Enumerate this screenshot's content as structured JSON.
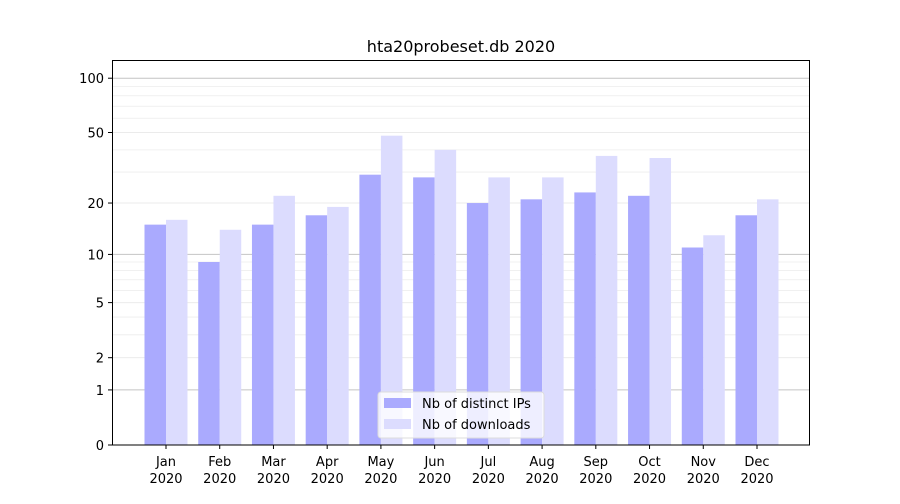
{
  "chart_data": {
    "type": "bar",
    "title": "hta20probeset.db 2020",
    "xlabel": "",
    "ylabel": "",
    "yscale": "log10(1+y)",
    "ylim": [
      0,
      126
    ],
    "yticks": [
      0,
      1,
      2,
      5,
      10,
      20,
      50,
      100
    ],
    "grid": true,
    "legend_position": "bottom-center",
    "categories": [
      "Jan\n2020",
      "Feb\n2020",
      "Mar\n2020",
      "Apr\n2020",
      "May\n2020",
      "Jun\n2020",
      "Jul\n2020",
      "Aug\n2020",
      "Sep\n2020",
      "Oct\n2020",
      "Nov\n2020",
      "Dec\n2020"
    ],
    "series": [
      {
        "name": "Nb of distinct IPs",
        "color": "#aaaafe",
        "values": [
          15,
          9,
          15,
          17,
          29,
          28,
          20,
          21,
          23,
          22,
          11,
          17
        ]
      },
      {
        "name": "Nb of downloads",
        "color": "#dcdcfe",
        "values": [
          16,
          14,
          22,
          19,
          48,
          40,
          28,
          28,
          37,
          36,
          13,
          21
        ]
      }
    ]
  }
}
